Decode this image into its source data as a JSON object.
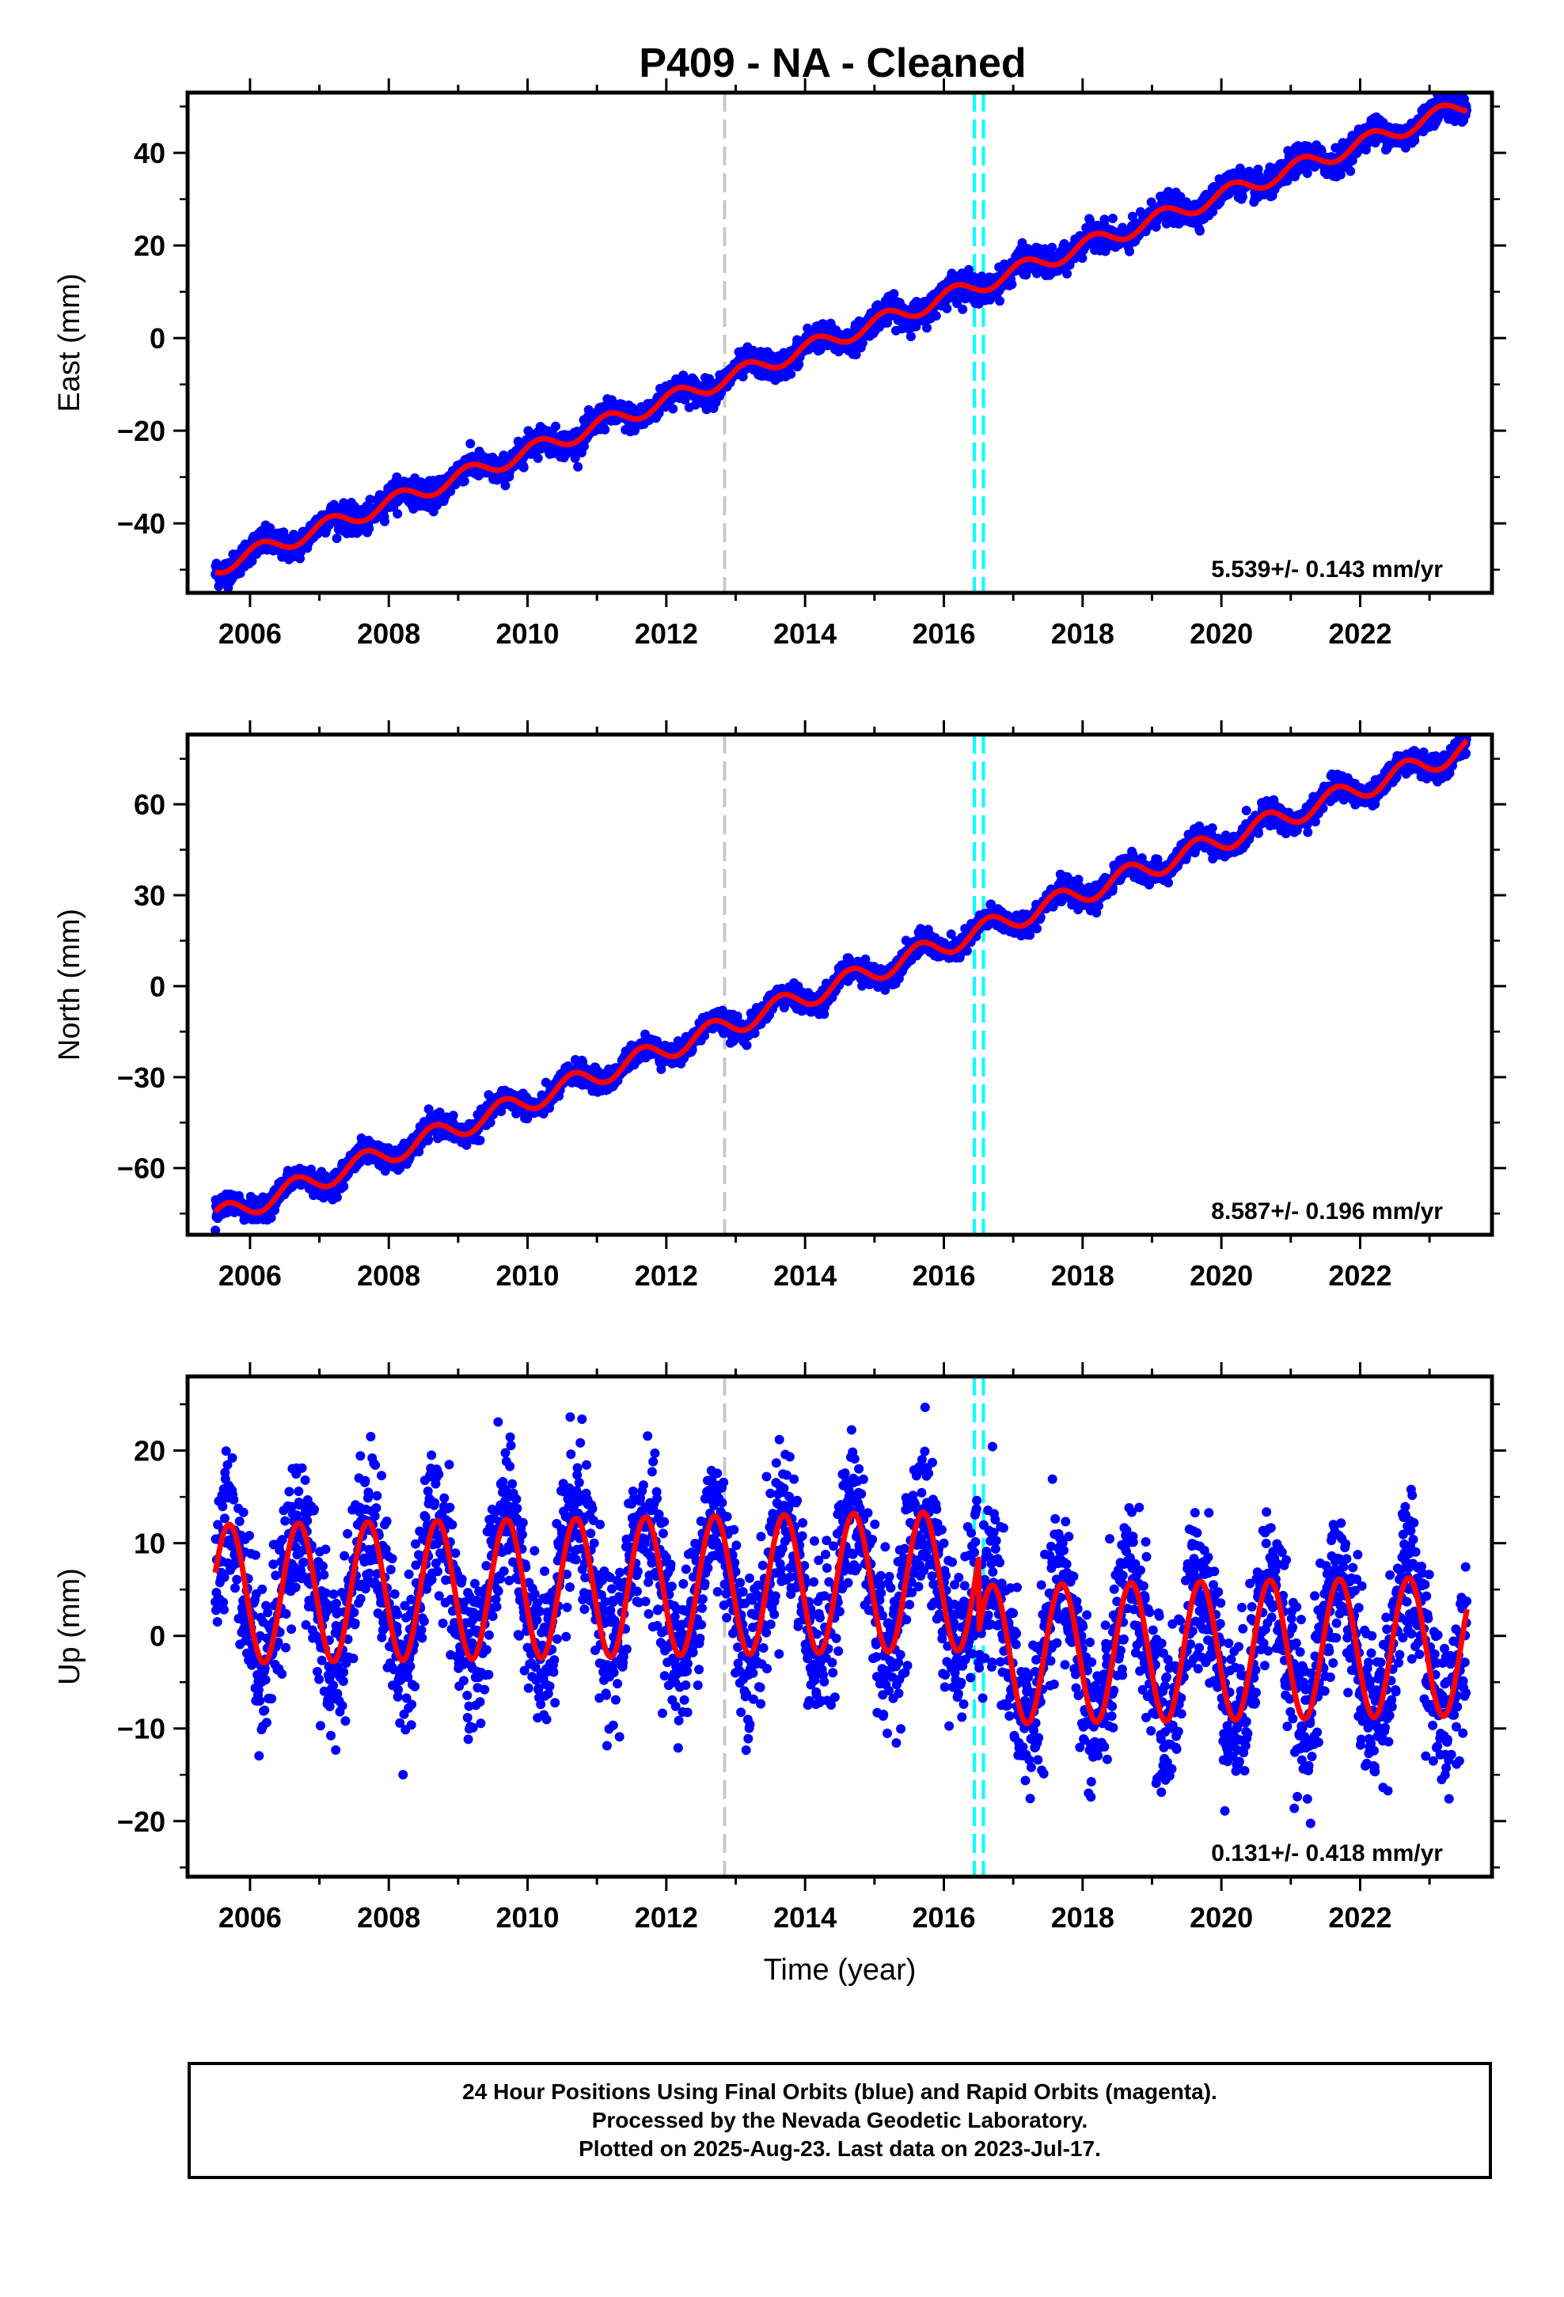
{
  "figure_title": "P409  - NA - Cleaned",
  "footer": {
    "line1": "24 Hour Positions Using Final Orbits (blue) and Rapid Orbits (magenta).",
    "line2": "Processed by the Nevada Geodetic Laboratory.",
    "line3": "Plotted on 2025-Aug-23. Last data on 2023-Jul-17."
  },
  "colors": {
    "final_orbits_points": "#0000ff",
    "model_fit_line": "#ff0000",
    "antenna_change_line": "#c8c8c8",
    "equipment_change_lines": "#00ffff",
    "axes": "#000000"
  },
  "chart_data": [
    {
      "type": "scatter",
      "panel": "east",
      "ylabel": "East (mm)",
      "xlabel": "",
      "xlim": [
        2005.1,
        2023.9
      ],
      "ylim": [
        -55,
        53
      ],
      "xticks": [
        "2006",
        "2008",
        "2010",
        "2012",
        "2014",
        "2016",
        "2018",
        "2020",
        "2022"
      ],
      "yticks": [
        "-40",
        "-20",
        "0",
        "20",
        "40"
      ],
      "rate_label": "5.539+/- 0.143 mm/yr",
      "vertical_lines": [
        {
          "x": 2012.84,
          "color": "#c8c8c8",
          "style": "dashed"
        },
        {
          "x": 2016.44,
          "color": "#00ffff",
          "style": "dashed"
        },
        {
          "x": 2016.57,
          "color": "#00ffff",
          "style": "dashed"
        }
      ],
      "fit_model": {
        "t0": 2005.5,
        "offset": -49.5,
        "rate": 5.539,
        "annual_amplitude": 1.8,
        "annual_phase": 0.6,
        "step_at_2016.5": 0
      },
      "points_summary": {
        "x_start": 2005.5,
        "x_end": 2023.54,
        "scatter_mm": 1.4
      }
    },
    {
      "type": "scatter",
      "panel": "north",
      "ylabel": "North (mm)",
      "xlabel": "",
      "xlim": [
        2005.1,
        2023.9
      ],
      "ylim": [
        -82,
        83
      ],
      "xticks": [
        "2006",
        "2008",
        "2010",
        "2012",
        "2014",
        "2016",
        "2018",
        "2020",
        "2022"
      ],
      "yticks": [
        "-60",
        "-30",
        "0",
        "30",
        "60"
      ],
      "rate_label": "8.587+/- 0.196 mm/yr",
      "vertical_lines": [
        {
          "x": 2012.84,
          "color": "#c8c8c8",
          "style": "dashed"
        },
        {
          "x": 2016.44,
          "color": "#00ffff",
          "style": "dashed"
        },
        {
          "x": 2016.57,
          "color": "#00ffff",
          "style": "dashed"
        }
      ],
      "fit_model": {
        "t0": 2005.5,
        "offset": -76.5,
        "rate": 8.587,
        "annual_amplitude": 3.5,
        "annual_phase": 0.1,
        "step_at_2016.5": 0
      },
      "points_summary": {
        "x_start": 2005.5,
        "x_end": 2023.54,
        "scatter_mm": 1.8
      }
    },
    {
      "type": "scatter",
      "panel": "up",
      "ylabel": "Up (mm)",
      "xlabel": "Time (year)",
      "xlim": [
        2005.1,
        2023.9
      ],
      "ylim": [
        -26,
        28
      ],
      "xticks": [
        "2006",
        "2008",
        "2010",
        "2012",
        "2014",
        "2016",
        "2018",
        "2020",
        "2022"
      ],
      "yticks": [
        "-20",
        "-10",
        "0",
        "10",
        "20"
      ],
      "rate_label": "0.131+/- 0.418 mm/yr",
      "vertical_lines": [
        {
          "x": 2012.84,
          "color": "#c8c8c8",
          "style": "dashed"
        },
        {
          "x": 2016.44,
          "color": "#00ffff",
          "style": "dashed"
        },
        {
          "x": 2016.57,
          "color": "#00ffff",
          "style": "dashed"
        }
      ],
      "fit_model": {
        "t0": 2005.5,
        "offset": 4.5,
        "rate": 0.131,
        "annual_amplitude": 7.5,
        "annual_phase": 0.05,
        "step_at_2016.5": -8.0
      },
      "points_summary": {
        "x_start": 2005.5,
        "x_end": 2023.54,
        "scatter_mm": 4.2
      }
    }
  ]
}
